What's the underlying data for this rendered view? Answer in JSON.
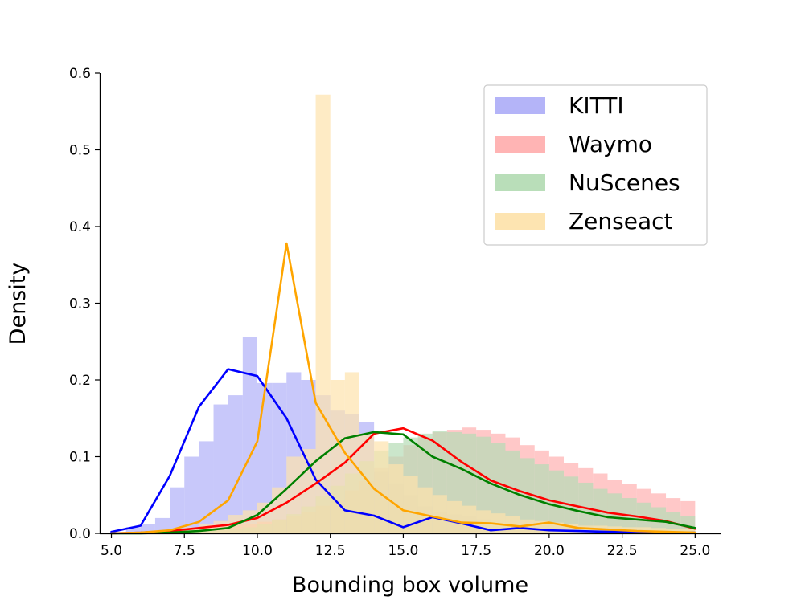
{
  "chart_data": {
    "type": "histogram",
    "xlabel": "Bounding box volume",
    "ylabel": "Density",
    "xlim": [
      4.6,
      25.9
    ],
    "ylim": [
      0,
      0.6
    ],
    "xticks": [
      "5.0",
      "7.5",
      "10.0",
      "12.5",
      "15.0",
      "17.5",
      "20.0",
      "22.5",
      "25.0"
    ],
    "xtick_values": [
      5,
      7.5,
      10,
      12.5,
      15,
      17.5,
      20,
      22.5,
      25
    ],
    "yticks": [
      "0.0",
      "0.1",
      "0.2",
      "0.3",
      "0.4",
      "0.5",
      "0.6"
    ],
    "ytick_values": [
      0,
      0.1,
      0.2,
      0.3,
      0.4,
      0.5,
      0.6
    ],
    "legend_position": "top-right",
    "bin_start": 5.0,
    "bin_width": 0.5,
    "series": [
      {
        "name": "KITTI",
        "bar_color": "#b0b0f8",
        "line_color": "#0000ff",
        "hist": [
          0.002,
          0.008,
          0.012,
          0.02,
          0.06,
          0.1,
          0.12,
          0.168,
          0.18,
          0.256,
          0.196,
          0.196,
          0.21,
          0.2,
          0.18,
          0.16,
          0.155,
          0.145,
          0.08,
          0.065,
          0.05,
          0.035,
          0.028,
          0.025,
          0.022,
          0.018,
          0.01,
          0.01,
          0.012,
          0.01,
          0.012,
          0.01,
          0.01,
          0.008,
          0.008,
          0.006,
          0.006,
          0.006,
          0.005,
          0.005
        ],
        "line_x": [
          5,
          6,
          7,
          8,
          9,
          10,
          11,
          12,
          13,
          14,
          15,
          16,
          17,
          18,
          19,
          20,
          21,
          22,
          23,
          24,
          25
        ],
        "line_y": [
          0.002,
          0.01,
          0.075,
          0.165,
          0.214,
          0.205,
          0.15,
          0.07,
          0.03,
          0.023,
          0.008,
          0.021,
          0.013,
          0.004,
          0.007,
          0.004,
          0.003,
          0.002,
          0.002,
          0.001,
          0.001
        ]
      },
      {
        "name": "Waymo",
        "bar_color": "#ffb0b0",
        "line_color": "#ff0000",
        "hist": [
          0.0,
          0.0,
          0.0,
          0.002,
          0.004,
          0.006,
          0.008,
          0.01,
          0.012,
          0.012,
          0.015,
          0.018,
          0.022,
          0.028,
          0.036,
          0.044,
          0.056,
          0.068,
          0.085,
          0.1,
          0.115,
          0.125,
          0.132,
          0.135,
          0.138,
          0.135,
          0.13,
          0.125,
          0.115,
          0.108,
          0.1,
          0.092,
          0.085,
          0.078,
          0.07,
          0.064,
          0.058,
          0.052,
          0.046,
          0.042
        ],
        "line_x": [
          5,
          6,
          7,
          8,
          9,
          10,
          11,
          12,
          13,
          14,
          15,
          16,
          17,
          18,
          19,
          20,
          21,
          22,
          23,
          24,
          25
        ],
        "line_y": [
          0.0,
          0.001,
          0.003,
          0.007,
          0.011,
          0.02,
          0.04,
          0.065,
          0.092,
          0.13,
          0.137,
          0.121,
          0.093,
          0.069,
          0.055,
          0.043,
          0.035,
          0.027,
          0.022,
          0.016,
          0.006
        ]
      },
      {
        "name": "NuScenes",
        "bar_color": "#b5dcb5",
        "line_color": "#008000",
        "hist": [
          0.0,
          0.0,
          0.0,
          0.001,
          0.002,
          0.003,
          0.004,
          0.005,
          0.006,
          0.008,
          0.012,
          0.018,
          0.025,
          0.035,
          0.048,
          0.062,
          0.078,
          0.094,
          0.108,
          0.118,
          0.125,
          0.13,
          0.133,
          0.132,
          0.13,
          0.126,
          0.118,
          0.108,
          0.098,
          0.09,
          0.082,
          0.074,
          0.066,
          0.058,
          0.052,
          0.046,
          0.04,
          0.034,
          0.028,
          0.022
        ],
        "line_x": [
          5,
          6,
          7,
          8,
          9,
          10,
          11,
          12,
          13,
          14,
          15,
          16,
          17,
          18,
          19,
          20,
          21,
          22,
          23,
          24,
          25
        ],
        "line_y": [
          0.0,
          0.0,
          0.001,
          0.003,
          0.007,
          0.024,
          0.058,
          0.094,
          0.124,
          0.132,
          0.129,
          0.1,
          0.084,
          0.065,
          0.05,
          0.038,
          0.029,
          0.021,
          0.018,
          0.015,
          0.007
        ]
      },
      {
        "name": "Zenseact",
        "bar_color": "#fde3ad",
        "line_color": "#ffa500",
        "hist": [
          0.0,
          0.0,
          0.002,
          0.004,
          0.006,
          0.008,
          0.012,
          0.016,
          0.024,
          0.03,
          0.04,
          0.06,
          0.1,
          0.11,
          0.572,
          0.2,
          0.21,
          0.13,
          0.12,
          0.09,
          0.075,
          0.06,
          0.05,
          0.042,
          0.036,
          0.03,
          0.026,
          0.022,
          0.018,
          0.016,
          0.014,
          0.012,
          0.01,
          0.01,
          0.009,
          0.008,
          0.008,
          0.007,
          0.006,
          0.006
        ],
        "line_x": [
          5,
          6,
          7,
          8,
          9,
          10,
          11,
          12,
          13,
          14,
          15,
          16,
          17,
          18,
          19,
          20,
          21,
          22,
          23,
          24,
          25
        ],
        "line_y": [
          0.0,
          0.001,
          0.004,
          0.015,
          0.043,
          0.12,
          0.378,
          0.17,
          0.105,
          0.058,
          0.03,
          0.022,
          0.014,
          0.013,
          0.009,
          0.014,
          0.007,
          0.005,
          0.003,
          0.002,
          0.001
        ]
      }
    ]
  }
}
